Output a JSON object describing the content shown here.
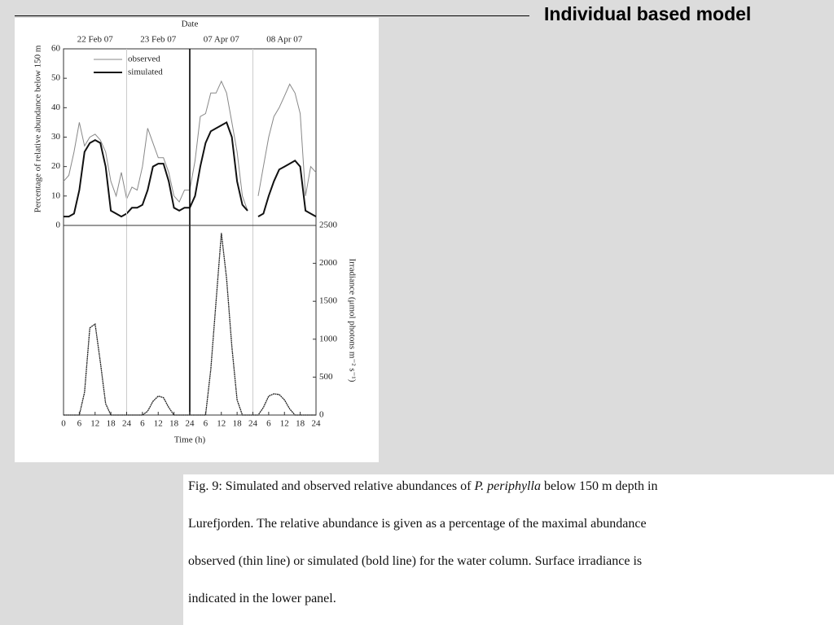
{
  "header": {
    "title": "Individual based model"
  },
  "caption": {
    "lines": [
      [
        "Fig. 9: Simulated and observed relative abundances of ",
        "P. periphylla",
        " below 150 m depth in"
      ],
      "Lurefjorden. The relative abundance is given as a percentage of the maximal abundance",
      "observed (thin line) or simulated (bold line) for the water column. Surface irradiance is",
      "indicated in the lower panel."
    ]
  },
  "chart_data": [
    {
      "type": "line",
      "x_label_top": "Date",
      "categories": [
        "22 Feb 07",
        "23 Feb 07",
        "07 Apr 07",
        "08 Apr 07"
      ],
      "y_label": "Percentage of relative abundance below 150 m",
      "x": [
        0,
        2,
        4,
        6,
        8,
        10,
        12,
        14,
        16,
        18,
        20,
        22,
        24,
        26,
        28,
        30,
        32,
        34,
        36,
        38,
        40,
        42,
        44,
        46,
        48,
        50,
        52,
        54,
        56,
        58,
        60,
        62,
        64,
        66,
        68,
        70,
        72,
        74,
        76,
        78,
        80,
        82,
        84,
        86,
        88,
        90,
        92,
        94,
        96
      ],
      "xlim": [
        0,
        96
      ],
      "ylim": [
        0,
        60
      ],
      "yticks": [
        0,
        10,
        20,
        30,
        40,
        50,
        60
      ],
      "legend": "upper left",
      "series": [
        {
          "name": "observed",
          "color": "#888888",
          "values": [
            15,
            17,
            25,
            35,
            27,
            30,
            31,
            29,
            25,
            15,
            10,
            18,
            9,
            13,
            12,
            20,
            33,
            28,
            23,
            23,
            18,
            10,
            8,
            12,
            12,
            22,
            37,
            38,
            45,
            45,
            49,
            45,
            35,
            25,
            10,
            5,
            null,
            10,
            20,
            30,
            37,
            40,
            44,
            48,
            45,
            38,
            10,
            20,
            18
          ]
        },
        {
          "name": "simulated",
          "color": "#111111",
          "values": [
            3,
            3,
            4,
            12,
            25,
            28,
            29,
            28,
            20,
            5,
            4,
            3,
            4,
            6,
            6,
            7,
            12,
            20,
            21,
            21,
            15,
            6,
            5,
            6,
            6,
            10,
            20,
            28,
            32,
            33,
            34,
            35,
            30,
            15,
            7,
            5,
            null,
            3,
            4,
            10,
            15,
            19,
            20,
            21,
            22,
            20,
            5,
            4,
            3
          ]
        }
      ]
    },
    {
      "type": "line",
      "x_label": "Time (h)",
      "y2_label": "Irradiance (μmol photons m⁻² s⁻¹)",
      "x": [
        0,
        2,
        4,
        6,
        8,
        10,
        12,
        14,
        16,
        18,
        20,
        22,
        24,
        26,
        28,
        30,
        32,
        34,
        36,
        38,
        40,
        42,
        44,
        46,
        48,
        50,
        52,
        54,
        56,
        58,
        60,
        62,
        64,
        66,
        68,
        70,
        72,
        74,
        76,
        78,
        80,
        82,
        84,
        86,
        88,
        90,
        92,
        94,
        96
      ],
      "xlim": [
        0,
        96
      ],
      "xticks": [
        0,
        6,
        12,
        18,
        24,
        {
          "value": 30,
          "label": "6"
        },
        {
          "value": 36,
          "label": "12"
        },
        {
          "value": 42,
          "label": "18"
        },
        {
          "value": 48,
          "label": "24"
        },
        {
          "value": 54,
          "label": "6"
        },
        {
          "value": 60,
          "label": "12"
        },
        {
          "value": 66,
          "label": "18"
        },
        {
          "value": 72,
          "label": "24"
        },
        {
          "value": 78,
          "label": "6"
        },
        {
          "value": 84,
          "label": "12"
        },
        {
          "value": 90,
          "label": "18"
        },
        {
          "value": 96,
          "label": "24"
        }
      ],
      "y2lim": [
        0,
        2500
      ],
      "y2ticks": [
        0,
        500,
        1000,
        1500,
        2000,
        2500
      ],
      "series": [
        {
          "axis": "y2",
          "color": "#222222",
          "values": [
            0,
            0,
            0,
            0,
            300,
            1150,
            1200,
            700,
            150,
            0,
            0,
            0,
            0,
            0,
            0,
            0,
            50,
            180,
            250,
            230,
            100,
            0,
            0,
            0,
            0,
            0,
            0,
            0,
            600,
            1500,
            2400,
            1800,
            900,
            200,
            0,
            0,
            0,
            0,
            100,
            250,
            280,
            270,
            200,
            80,
            0,
            0,
            0,
            0,
            0
          ]
        }
      ]
    }
  ]
}
